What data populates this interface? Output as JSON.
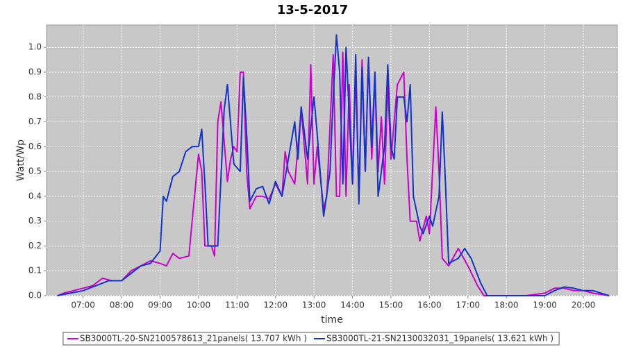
{
  "chart_data": {
    "type": "line",
    "title": "13-5-2017",
    "x_label": "time",
    "y_label": "Watt/Wp",
    "xlim": [
      "06:03",
      "20:53"
    ],
    "xticks": [
      "07:00",
      "08:00",
      "09:00",
      "10:00",
      "11:00",
      "12:00",
      "13:00",
      "14:00",
      "15:00",
      "16:00",
      "17:00",
      "18:00",
      "19:00",
      "20:00"
    ],
    "ylim": [
      0,
      1.09
    ],
    "yticks": [
      {
        "value": 0,
        "label": "0.0"
      },
      0.1,
      0.2,
      0.3,
      0.4,
      0.5,
      0.6,
      0.7,
      0.8,
      0.9,
      {
        "value": 1,
        "label": "1.0"
      }
    ],
    "grid": true,
    "legend": "bottom",
    "series": [
      {
        "name": "SB3000TL-20-SN2100578613_21panels( 13.707 kWh )",
        "color": "#cc00cc",
        "x": [
          "06:20",
          "06:30",
          "06:45",
          "07:00",
          "07:15",
          "07:30",
          "07:45",
          "08:00",
          "08:15",
          "08:30",
          "08:45",
          "09:00",
          "09:10",
          "09:20",
          "09:30",
          "09:45",
          "09:50",
          "10:00",
          "10:05",
          "10:10",
          "10:20",
          "10:25",
          "10:30",
          "10:35",
          "10:45",
          "10:50",
          "10:55",
          "11:00",
          "11:05",
          "11:10",
          "11:15",
          "11:20",
          "11:30",
          "11:40",
          "11:50",
          "12:00",
          "12:10",
          "12:15",
          "12:20",
          "12:30",
          "12:40",
          "12:45",
          "12:50",
          "12:55",
          "13:00",
          "13:05",
          "13:15",
          "13:20",
          "13:30",
          "13:35",
          "13:40",
          "13:45",
          "13:50",
          "13:55",
          "14:00",
          "14:05",
          "14:10",
          "14:15",
          "14:20",
          "14:25",
          "14:30",
          "14:35",
          "14:40",
          "14:45",
          "14:50",
          "14:55",
          "15:00",
          "15:05",
          "15:10",
          "15:20",
          "15:25",
          "15:30",
          "15:40",
          "15:45",
          "15:55",
          "16:00",
          "16:10",
          "16:15",
          "16:20",
          "16:30",
          "16:45",
          "17:00",
          "17:15",
          "17:25",
          "18:00",
          "18:30",
          "19:00",
          "19:15",
          "19:30",
          "19:45",
          "20:00",
          "20:15",
          "20:40"
        ],
        "values": [
          0.0,
          0.01,
          0.02,
          0.03,
          0.04,
          0.07,
          0.06,
          0.06,
          0.1,
          0.12,
          0.14,
          0.13,
          0.12,
          0.17,
          0.15,
          0.16,
          0.3,
          0.57,
          0.5,
          0.2,
          0.2,
          0.16,
          0.7,
          0.78,
          0.46,
          0.55,
          0.6,
          0.58,
          0.9,
          0.9,
          0.5,
          0.35,
          0.4,
          0.4,
          0.39,
          0.45,
          0.4,
          0.58,
          0.5,
          0.45,
          0.75,
          0.6,
          0.45,
          0.93,
          0.45,
          0.6,
          0.35,
          0.4,
          0.97,
          0.4,
          0.4,
          0.98,
          0.4,
          0.85,
          0.45,
          0.9,
          0.4,
          0.95,
          0.5,
          0.95,
          0.55,
          0.88,
          0.5,
          0.72,
          0.45,
          0.85,
          0.55,
          0.7,
          0.85,
          0.9,
          0.55,
          0.3,
          0.3,
          0.22,
          0.32,
          0.25,
          0.76,
          0.5,
          0.15,
          0.12,
          0.19,
          0.12,
          0.04,
          0.0,
          0,
          0,
          0.01,
          0.03,
          0.03,
          0.02,
          0.02,
          0.01,
          0.0
        ]
      },
      {
        "name": "SB3000TL-21-SN2130032031_19panels( 13.621 kWh )",
        "color": "#1133cc",
        "x": [
          "06:20",
          "06:40",
          "07:00",
          "07:20",
          "07:40",
          "08:00",
          "08:15",
          "08:30",
          "08:45",
          "09:00",
          "09:05",
          "09:10",
          "09:20",
          "09:30",
          "09:40",
          "09:50",
          "10:00",
          "10:05",
          "10:10",
          "10:15",
          "10:30",
          "10:40",
          "10:45",
          "10:55",
          "11:05",
          "11:10",
          "11:15",
          "11:20",
          "11:30",
          "11:40",
          "11:50",
          "12:00",
          "12:10",
          "12:20",
          "12:30",
          "12:35",
          "12:40",
          "12:50",
          "13:00",
          "13:05",
          "13:15",
          "13:25",
          "13:30",
          "13:35",
          "13:40",
          "13:45",
          "13:50",
          "14:00",
          "14:05",
          "14:10",
          "14:15",
          "14:20",
          "14:25",
          "14:30",
          "14:35",
          "14:40",
          "14:50",
          "14:55",
          "15:00",
          "15:05",
          "15:10",
          "15:20",
          "15:25",
          "15:30",
          "15:35",
          "15:45",
          "15:50",
          "16:00",
          "16:05",
          "16:15",
          "16:20",
          "16:25",
          "16:30",
          "16:45",
          "16:55",
          "17:05",
          "17:20",
          "17:30",
          "18:00",
          "19:00",
          "19:15",
          "19:30",
          "19:45",
          "20:00",
          "20:15",
          "20:40"
        ],
        "values": [
          0,
          0.01,
          0.02,
          0.04,
          0.06,
          0.06,
          0.09,
          0.12,
          0.13,
          0.18,
          0.4,
          0.38,
          0.48,
          0.5,
          0.58,
          0.6,
          0.6,
          0.67,
          0.45,
          0.2,
          0.2,
          0.75,
          0.85,
          0.53,
          0.5,
          0.88,
          0.65,
          0.38,
          0.43,
          0.44,
          0.37,
          0.46,
          0.4,
          0.55,
          0.7,
          0.55,
          0.76,
          0.55,
          0.8,
          0.65,
          0.32,
          0.5,
          0.8,
          1.05,
          0.9,
          0.45,
          1.0,
          0.45,
          0.97,
          0.37,
          0.92,
          0.5,
          0.96,
          0.6,
          0.9,
          0.4,
          0.6,
          0.93,
          0.6,
          0.55,
          0.8,
          0.8,
          0.7,
          0.85,
          0.4,
          0.28,
          0.25,
          0.32,
          0.28,
          0.4,
          0.74,
          0.45,
          0.13,
          0.15,
          0.19,
          0.15,
          0.05,
          0.0,
          0,
          0.0,
          0.02,
          0.035,
          0.03,
          0.02,
          0.02,
          0.0
        ]
      }
    ]
  }
}
